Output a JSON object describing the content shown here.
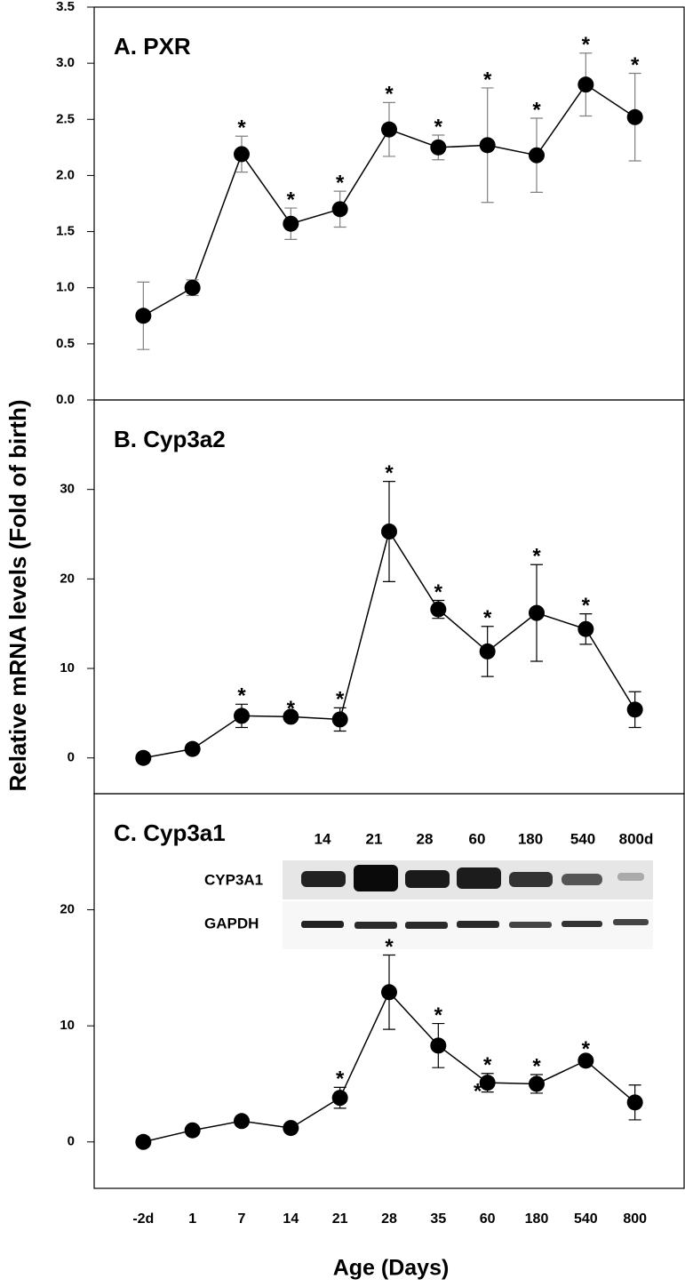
{
  "chart_data": [
    {
      "type": "line",
      "title": "A. PXR",
      "color": "#000000",
      "error_color": "#808080",
      "values": [
        0.75,
        1.0,
        2.19,
        1.57,
        1.7,
        2.41,
        2.25,
        2.27,
        2.18,
        2.81,
        2.52
      ],
      "errors": [
        0.3,
        0.07,
        0.16,
        0.14,
        0.16,
        0.24,
        0.11,
        0.51,
        0.33,
        0.28,
        0.39
      ],
      "ylim": [
        0,
        3.5
      ],
      "yticks": [
        {
          "value": 0,
          "label": "0.0"
        },
        0.5,
        {
          "value": 1,
          "label": "1.0"
        },
        1.5,
        {
          "value": 2,
          "label": "2.0"
        },
        2.5,
        {
          "value": 3,
          "label": "3.0"
        },
        3.5
      ],
      "annotations": [
        {
          "text": "*",
          "index": 2
        },
        {
          "text": "*",
          "index": 3
        },
        {
          "text": "*",
          "index": 4
        },
        {
          "text": "*",
          "index": 5
        },
        {
          "text": "*",
          "index": 6
        },
        {
          "text": "*",
          "index": 7
        },
        {
          "text": "*",
          "index": 8
        },
        {
          "text": "*",
          "index": 9
        },
        {
          "text": "*",
          "index": 10
        }
      ]
    },
    {
      "type": "line",
      "title": "B. Cyp3a2",
      "color": "#000000",
      "error_color": "#000000",
      "ylabel": "Relative mRNA levels (Fold of birth)",
      "values": [
        0,
        1.0,
        4.7,
        4.6,
        4.3,
        25.3,
        16.6,
        11.9,
        16.2,
        14.4,
        5.4
      ],
      "errors": [
        null,
        null,
        1.3,
        null,
        1.3,
        5.6,
        1.0,
        2.8,
        5.4,
        1.7,
        2.0
      ],
      "ylim": [
        -4,
        40
      ],
      "yticks": [
        0,
        10,
        20,
        30
      ],
      "annotations": [
        {
          "text": "*",
          "index": 2
        },
        {
          "text": "*",
          "index": 3
        },
        {
          "text": "*",
          "index": 4
        },
        {
          "text": "*",
          "index": 5
        },
        {
          "text": "*",
          "index": 6
        },
        {
          "text": "*",
          "index": 7
        },
        {
          "text": "*",
          "index": 8
        },
        {
          "text": "*",
          "index": 9
        }
      ]
    },
    {
      "type": "line",
      "title": "C. Cyp3a1",
      "color": "#000000",
      "error_color": "#000000",
      "xlabel": "Age (Days)",
      "categories": [
        "-2d",
        "1",
        "7",
        "14",
        "21",
        "28",
        "35",
        "60",
        "180",
        "540",
        "800"
      ],
      "values": [
        0,
        1.0,
        1.8,
        1.2,
        3.8,
        12.9,
        8.3,
        5.1,
        5.0,
        7.0,
        3.4
      ],
      "errors": [
        null,
        null,
        null,
        null,
        0.9,
        3.2,
        1.9,
        0.8,
        0.8,
        0.3,
        1.5
      ],
      "ylim": [
        -4,
        30
      ],
      "yticks": [
        0,
        10,
        20
      ],
      "annotations": [
        {
          "text": "*",
          "index": 4
        },
        {
          "text": "*",
          "index": 5
        },
        {
          "text": "*",
          "index": 6
        },
        {
          "text": "*",
          "index": 7
        },
        {
          "text": "*",
          "index": 7
        },
        {
          "text": "*",
          "index": 8
        },
        {
          "text": "*",
          "index": 9
        }
      ],
      "inset": {
        "lanes": [
          "14",
          "21",
          "28",
          "60",
          "180",
          "540",
          "800d"
        ],
        "rows": [
          "CYP3A1",
          "GAPDH"
        ]
      }
    }
  ]
}
